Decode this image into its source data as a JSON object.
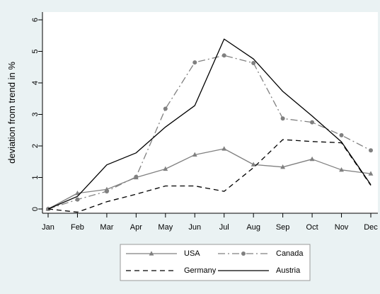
{
  "chart_data": {
    "type": "line",
    "title": "",
    "xlabel": "",
    "ylabel": "deviation from trend in %",
    "categories": [
      "Jan",
      "Feb",
      "Mar",
      "Apr",
      "May",
      "Jun",
      "Jul",
      "Aug",
      "Sep",
      "Oct",
      "Nov",
      "Dec"
    ],
    "y_ticks": [
      "0",
      "1",
      "2",
      "3",
      "4",
      "5",
      "6"
    ],
    "ylim": [
      0,
      6
    ],
    "grid": false,
    "legend_position": "bottom",
    "series": [
      {
        "name": "USA",
        "color": "#808080",
        "style": "solid-triangle",
        "values": [
          0,
          0.5,
          0.62,
          1.0,
          1.27,
          1.72,
          1.91,
          1.41,
          1.33,
          1.58,
          1.24,
          1.12
        ]
      },
      {
        "name": "Canada",
        "color": "#808080",
        "style": "dashdot-circle",
        "values": [
          0,
          0.3,
          0.56,
          1.02,
          3.18,
          4.65,
          4.87,
          4.63,
          2.87,
          2.75,
          2.34,
          1.86
        ]
      },
      {
        "name": "Germany",
        "color": "#000000",
        "style": "dashed",
        "values": [
          0,
          -0.1,
          0.23,
          0.47,
          0.73,
          0.73,
          0.56,
          1.31,
          2.2,
          2.14,
          2.1,
          0.75
        ]
      },
      {
        "name": "Austria",
        "color": "#000000",
        "style": "solid",
        "values": [
          0,
          0.4,
          1.4,
          1.78,
          2.6,
          3.28,
          5.39,
          4.76,
          3.73,
          2.95,
          2.13,
          0.77
        ]
      }
    ]
  }
}
